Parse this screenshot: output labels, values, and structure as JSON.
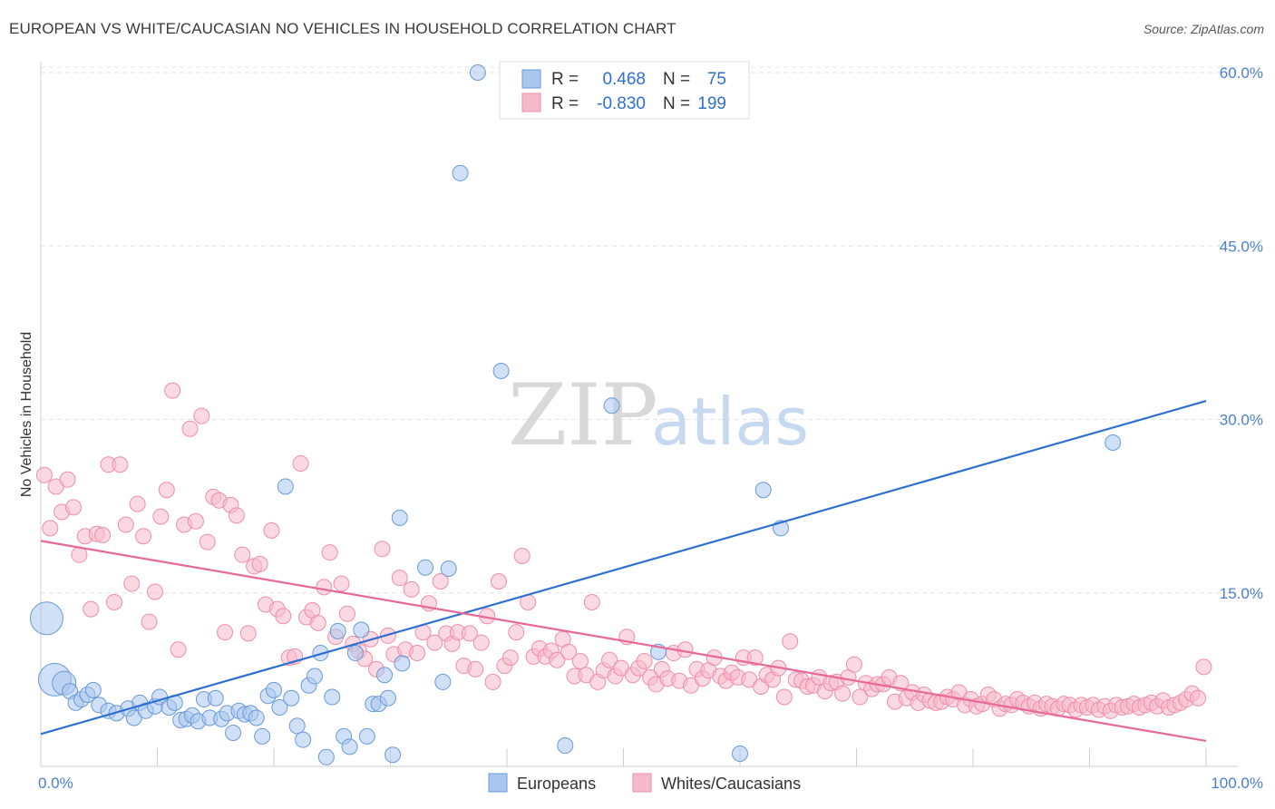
{
  "header": {
    "title": "EUROPEAN VS WHITE/CAUCASIAN NO VEHICLES IN HOUSEHOLD CORRELATION CHART",
    "source": "Source: ZipAtlas.com"
  },
  "watermark": {
    "zip": "ZIP",
    "atlas": "atlas"
  },
  "colors": {
    "europeans_fill": "#a9c7ee",
    "europeans_stroke": "#6a9ad8",
    "europeans_line": "#2f6fcf",
    "whites_fill": "#f6b9cb",
    "whites_stroke": "#ee8eaa",
    "whites_line": "#e8689a",
    "accent_text": "#4a7fd1"
  },
  "legend": {
    "rows": [
      {
        "r_label": "R = ",
        "r_value": "0.468",
        "n_label": "N = ",
        "n_value": "75"
      },
      {
        "r_label": "R = ",
        "r_value": "-0.830",
        "n_label": "N = ",
        "n_value": "199"
      }
    ]
  },
  "chart_data": {
    "type": "scatter",
    "title": "EUROPEAN VS WHITE/CAUCASIAN NO VEHICLES IN HOUSEHOLD CORRELATION CHART",
    "xlabel": "",
    "ylabel": "No Vehicles in Household",
    "xlim": [
      0,
      100
    ],
    "ylim": [
      0,
      63
    ],
    "x_tick_labels": [
      {
        "value": 0,
        "label": "0.0%"
      },
      {
        "value": 100,
        "label": "100.0%"
      }
    ],
    "y_tick_labels": [
      {
        "value": 15,
        "label": "15.0%"
      },
      {
        "value": 30,
        "label": "30.0%"
      },
      {
        "value": 45,
        "label": "45.0%"
      },
      {
        "value": 60,
        "label": "60.0%"
      }
    ],
    "grid": true,
    "legend_position": "top-center",
    "series": [
      {
        "name": "Europeans",
        "r": 0.468,
        "n": 75,
        "trend": {
          "x": [
            0,
            100
          ],
          "y": [
            2.8,
            31.6
          ]
        },
        "points": [
          [
            0.5,
            12.8,
            3
          ],
          [
            1.2,
            7.5,
            3
          ],
          [
            2,
            7.2,
            2
          ],
          [
            2.5,
            6.5,
            1
          ],
          [
            3,
            5.5,
            1
          ],
          [
            3.5,
            5.8,
            1
          ],
          [
            4,
            6.2,
            1
          ],
          [
            4.5,
            6.6,
            1
          ],
          [
            5,
            5.3,
            1
          ],
          [
            5.8,
            4.8,
            1
          ],
          [
            6.5,
            4.6,
            1
          ],
          [
            7.5,
            5.0,
            1
          ],
          [
            8,
            4.2,
            1
          ],
          [
            8.5,
            5.5,
            1
          ],
          [
            9,
            4.8,
            1
          ],
          [
            9.8,
            5.2,
            1
          ],
          [
            10.2,
            6.0,
            1
          ],
          [
            11,
            5.1,
            1
          ],
          [
            11.5,
            5.5,
            1
          ],
          [
            12,
            4.0,
            1
          ],
          [
            12.5,
            4.1,
            1
          ],
          [
            13,
            4.4,
            1
          ],
          [
            13.5,
            3.9,
            1
          ],
          [
            14,
            5.8,
            1
          ],
          [
            14.5,
            4.2,
            1
          ],
          [
            15,
            5.9,
            1
          ],
          [
            15.5,
            4.1,
            1
          ],
          [
            16,
            4.6,
            1
          ],
          [
            16.5,
            2.9,
            1
          ],
          [
            17,
            4.8,
            1
          ],
          [
            17.5,
            4.5,
            1
          ],
          [
            18,
            4.6,
            1
          ],
          [
            18.5,
            4.2,
            1
          ],
          [
            19,
            2.6,
            1
          ],
          [
            19.5,
            6.1,
            1
          ],
          [
            20,
            6.6,
            1
          ],
          [
            20.5,
            5.1,
            1
          ],
          [
            21,
            24.2,
            1
          ],
          [
            21.5,
            5.9,
            1
          ],
          [
            22,
            3.5,
            1
          ],
          [
            22.5,
            2.3,
            1
          ],
          [
            23,
            7.0,
            1
          ],
          [
            23.5,
            7.8,
            1
          ],
          [
            24,
            9.8,
            1
          ],
          [
            24.5,
            0.8,
            1
          ],
          [
            25,
            6.0,
            1
          ],
          [
            25.5,
            11.7,
            1
          ],
          [
            26,
            2.6,
            1
          ],
          [
            26.5,
            1.7,
            1
          ],
          [
            27,
            9.8,
            1
          ],
          [
            27.5,
            11.8,
            1
          ],
          [
            28,
            2.6,
            1
          ],
          [
            28.5,
            5.4,
            1
          ],
          [
            29,
            5.4,
            1
          ],
          [
            29.5,
            7.9,
            1
          ],
          [
            29.8,
            5.9,
            1
          ],
          [
            30.2,
            1.0,
            1
          ],
          [
            30.8,
            21.5,
            1
          ],
          [
            31,
            8.9,
            1
          ],
          [
            33,
            17.2,
            1
          ],
          [
            34.5,
            7.3,
            1
          ],
          [
            35,
            17.1,
            1
          ],
          [
            36,
            51.3,
            1
          ],
          [
            37.5,
            60.0,
            1
          ],
          [
            39.5,
            34.2,
            1
          ],
          [
            45,
            1.8,
            1
          ],
          [
            49,
            31.2,
            1
          ],
          [
            53,
            9.9,
            1
          ],
          [
            60,
            1.1,
            1
          ],
          [
            62,
            23.9,
            1
          ],
          [
            63.5,
            20.6,
            1
          ],
          [
            92,
            28.0,
            1
          ]
        ]
      },
      {
        "name": "Whites/Caucasians",
        "r": -0.83,
        "n": 199,
        "trend": {
          "x": [
            0,
            100
          ],
          "y": [
            19.5,
            2.2
          ]
        },
        "points": [
          [
            0.3,
            25.2
          ],
          [
            0.8,
            20.6
          ],
          [
            1.3,
            24.2
          ],
          [
            1.8,
            22.0
          ],
          [
            2.3,
            24.8
          ],
          [
            2.8,
            22.4
          ],
          [
            3.3,
            18.3
          ],
          [
            3.8,
            19.9
          ],
          [
            4.3,
            13.6
          ],
          [
            4.8,
            20.1
          ],
          [
            5.3,
            20.0
          ],
          [
            5.8,
            26.1
          ],
          [
            6.3,
            14.2
          ],
          [
            6.8,
            26.1
          ],
          [
            7.3,
            20.9
          ],
          [
            7.8,
            15.8
          ],
          [
            8.3,
            22.7
          ],
          [
            8.8,
            19.9
          ],
          [
            9.3,
            12.5
          ],
          [
            9.8,
            15.1
          ],
          [
            10.3,
            21.6
          ],
          [
            10.8,
            23.9
          ],
          [
            11.3,
            32.5
          ],
          [
            11.8,
            10.1
          ],
          [
            12.3,
            20.9
          ],
          [
            12.8,
            29.2
          ],
          [
            13.3,
            21.2
          ],
          [
            13.8,
            30.3
          ],
          [
            14.3,
            19.4
          ],
          [
            14.8,
            23.3
          ],
          [
            15.3,
            23.0
          ],
          [
            15.8,
            11.6
          ],
          [
            16.3,
            22.6
          ],
          [
            16.8,
            21.7
          ],
          [
            17.3,
            18.3
          ],
          [
            17.8,
            11.5
          ],
          [
            18.3,
            17.3
          ],
          [
            18.8,
            17.5
          ],
          [
            19.3,
            14.0
          ],
          [
            19.8,
            20.4
          ],
          [
            20.3,
            13.6
          ],
          [
            20.8,
            13.0
          ],
          [
            21.3,
            9.4
          ],
          [
            21.8,
            9.5
          ],
          [
            22.3,
            26.2
          ],
          [
            22.8,
            12.9
          ],
          [
            23.3,
            13.5
          ],
          [
            23.8,
            12.4
          ],
          [
            24.3,
            15.5
          ],
          [
            24.8,
            18.5
          ],
          [
            25.3,
            11.2
          ],
          [
            25.8,
            15.8
          ],
          [
            26.3,
            13.2
          ],
          [
            26.8,
            10.6
          ],
          [
            27.3,
            10.0
          ],
          [
            27.8,
            9.3
          ],
          [
            28.3,
            11.0
          ],
          [
            28.8,
            8.4
          ],
          [
            29.3,
            18.8
          ],
          [
            29.8,
            11.3
          ],
          [
            30.3,
            9.7
          ],
          [
            30.8,
            16.3
          ],
          [
            31.3,
            10.1
          ],
          [
            31.8,
            15.3
          ],
          [
            32.3,
            9.8
          ],
          [
            32.8,
            11.6
          ],
          [
            33.3,
            14.1
          ],
          [
            33.8,
            10.7
          ],
          [
            34.3,
            16.0
          ],
          [
            34.8,
            11.5
          ],
          [
            35.3,
            10.6
          ],
          [
            35.8,
            11.6
          ],
          [
            36.3,
            8.7
          ],
          [
            36.8,
            11.5
          ],
          [
            37.3,
            8.4
          ],
          [
            37.8,
            10.7
          ],
          [
            38.3,
            13.0
          ],
          [
            38.8,
            7.3
          ],
          [
            39.3,
            16.0
          ],
          [
            39.8,
            8.7
          ],
          [
            40.3,
            9.4
          ],
          [
            40.8,
            11.6
          ],
          [
            41.3,
            18.2
          ],
          [
            41.8,
            14.2
          ],
          [
            42.3,
            9.5
          ],
          [
            42.8,
            10.2
          ],
          [
            43.3,
            9.5
          ],
          [
            43.8,
            10.0
          ],
          [
            44.3,
            9.2
          ],
          [
            44.8,
            11.0
          ],
          [
            45.3,
            9.9
          ],
          [
            45.8,
            7.8
          ],
          [
            46.3,
            9.1
          ],
          [
            46.8,
            7.9
          ],
          [
            47.3,
            14.2
          ],
          [
            47.8,
            7.3
          ],
          [
            48.3,
            8.3
          ],
          [
            48.8,
            9.2
          ],
          [
            49.3,
            7.8
          ],
          [
            49.8,
            8.5
          ],
          [
            50.3,
            11.2
          ],
          [
            50.8,
            7.9
          ],
          [
            51.3,
            8.5
          ],
          [
            51.8,
            9.1
          ],
          [
            52.3,
            7.7
          ],
          [
            52.8,
            7.1
          ],
          [
            53.3,
            8.4
          ],
          [
            53.8,
            7.6
          ],
          [
            54.3,
            9.8
          ],
          [
            54.8,
            7.4
          ],
          [
            55.3,
            10.1
          ],
          [
            55.8,
            7.0
          ],
          [
            56.3,
            8.4
          ],
          [
            56.8,
            7.6
          ],
          [
            57.3,
            8.3
          ],
          [
            57.8,
            9.4
          ],
          [
            58.3,
            7.8
          ],
          [
            58.8,
            7.4
          ],
          [
            59.3,
            8.1
          ],
          [
            59.8,
            7.7
          ],
          [
            60.3,
            9.4
          ],
          [
            60.8,
            7.5
          ],
          [
            61.3,
            9.4
          ],
          [
            61.8,
            6.9
          ],
          [
            62.3,
            7.9
          ],
          [
            62.8,
            7.5
          ],
          [
            63.3,
            8.5
          ],
          [
            63.8,
            6.0
          ],
          [
            64.3,
            10.8
          ],
          [
            64.8,
            7.5
          ],
          [
            65.3,
            7.4
          ],
          [
            65.8,
            6.9
          ],
          [
            66.3,
            7.0
          ],
          [
            66.8,
            7.7
          ],
          [
            67.3,
            6.5
          ],
          [
            67.8,
            7.2
          ],
          [
            68.3,
            7.3
          ],
          [
            68.8,
            6.3
          ],
          [
            69.3,
            7.7
          ],
          [
            69.8,
            8.8
          ],
          [
            70.3,
            6.0
          ],
          [
            70.8,
            7.2
          ],
          [
            71.3,
            6.7
          ],
          [
            71.8,
            7.1
          ],
          [
            72.3,
            7.1
          ],
          [
            72.8,
            7.7
          ],
          [
            73.3,
            5.6
          ],
          [
            73.8,
            7.2
          ],
          [
            74.3,
            5.9
          ],
          [
            74.8,
            6.4
          ],
          [
            75.3,
            5.5
          ],
          [
            75.8,
            6.2
          ],
          [
            76.3,
            5.7
          ],
          [
            76.8,
            5.5
          ],
          [
            77.3,
            5.6
          ],
          [
            77.8,
            6.0
          ],
          [
            78.3,
            5.8
          ],
          [
            78.8,
            6.4
          ],
          [
            79.3,
            5.3
          ],
          [
            79.8,
            5.8
          ],
          [
            80.3,
            5.2
          ],
          [
            80.8,
            5.4
          ],
          [
            81.3,
            6.2
          ],
          [
            81.8,
            5.8
          ],
          [
            82.3,
            5.0
          ],
          [
            82.8,
            5.4
          ],
          [
            83.3,
            5.3
          ],
          [
            83.8,
            5.8
          ],
          [
            84.3,
            5.5
          ],
          [
            84.8,
            5.2
          ],
          [
            85.3,
            5.5
          ],
          [
            85.8,
            5.0
          ],
          [
            86.3,
            5.4
          ],
          [
            86.8,
            5.2
          ],
          [
            87.3,
            5.0
          ],
          [
            87.8,
            5.4
          ],
          [
            88.3,
            5.3
          ],
          [
            88.8,
            4.9
          ],
          [
            89.3,
            5.3
          ],
          [
            89.8,
            5.1
          ],
          [
            90.3,
            5.3
          ],
          [
            90.8,
            4.9
          ],
          [
            91.3,
            5.2
          ],
          [
            91.8,
            4.8
          ],
          [
            92.3,
            5.3
          ],
          [
            92.8,
            5.1
          ],
          [
            93.3,
            5.2
          ],
          [
            93.8,
            5.4
          ],
          [
            94.3,
            5.1
          ],
          [
            94.8,
            5.3
          ],
          [
            95.3,
            5.5
          ],
          [
            95.8,
            5.2
          ],
          [
            96.3,
            5.7
          ],
          [
            96.8,
            5.1
          ],
          [
            97.3,
            5.3
          ],
          [
            97.8,
            5.5
          ],
          [
            98.3,
            5.8
          ],
          [
            98.8,
            6.3
          ],
          [
            99.3,
            5.9
          ],
          [
            99.8,
            8.6
          ]
        ]
      }
    ]
  }
}
